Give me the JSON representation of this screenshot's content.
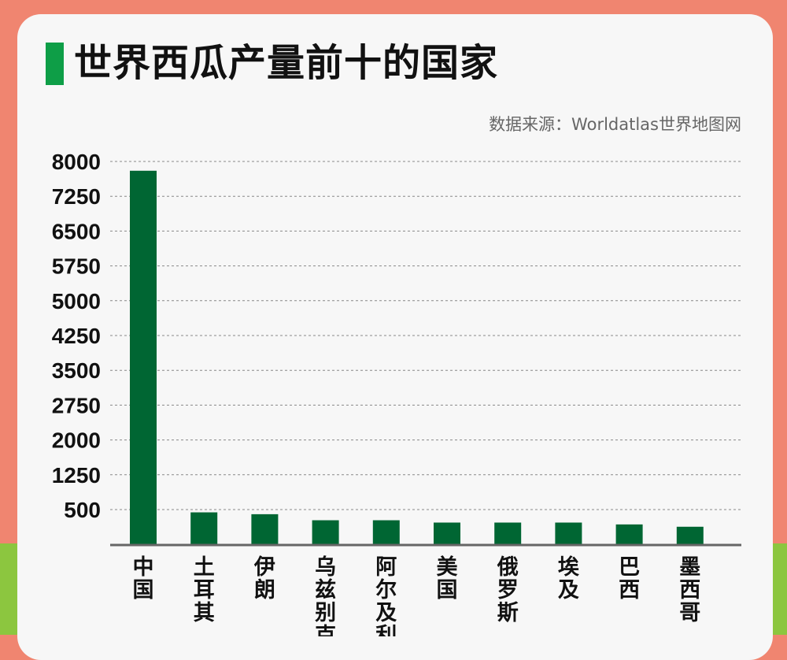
{
  "header": {
    "title": "世界西瓜产量前十的国家",
    "source": "数据来源：Worldatlas世界地图网"
  },
  "colors": {
    "background": "#f08570",
    "band": "#8cc63f",
    "card": "#f7f7f7",
    "accent": "#0e9e47",
    "bar": "#006633"
  },
  "chart_data": {
    "type": "bar",
    "title": "世界西瓜产量前十的国家",
    "xlabel": "",
    "ylabel": "",
    "ylim": [
      0,
      8000
    ],
    "yticks": [
      "8000",
      "7250",
      "6500",
      "5750",
      "5000",
      "4250",
      "3500",
      "2750",
      "2000",
      "1250",
      "500"
    ],
    "grid": true,
    "legend": "none",
    "categories": [
      "中国",
      "土耳其",
      "伊朗",
      "乌兹别克",
      "阿尔及利",
      "美国",
      "俄罗斯",
      "埃及",
      "巴西",
      "墨西哥"
    ],
    "values": [
      7800,
      440,
      400,
      270,
      270,
      220,
      220,
      220,
      180,
      130
    ]
  }
}
